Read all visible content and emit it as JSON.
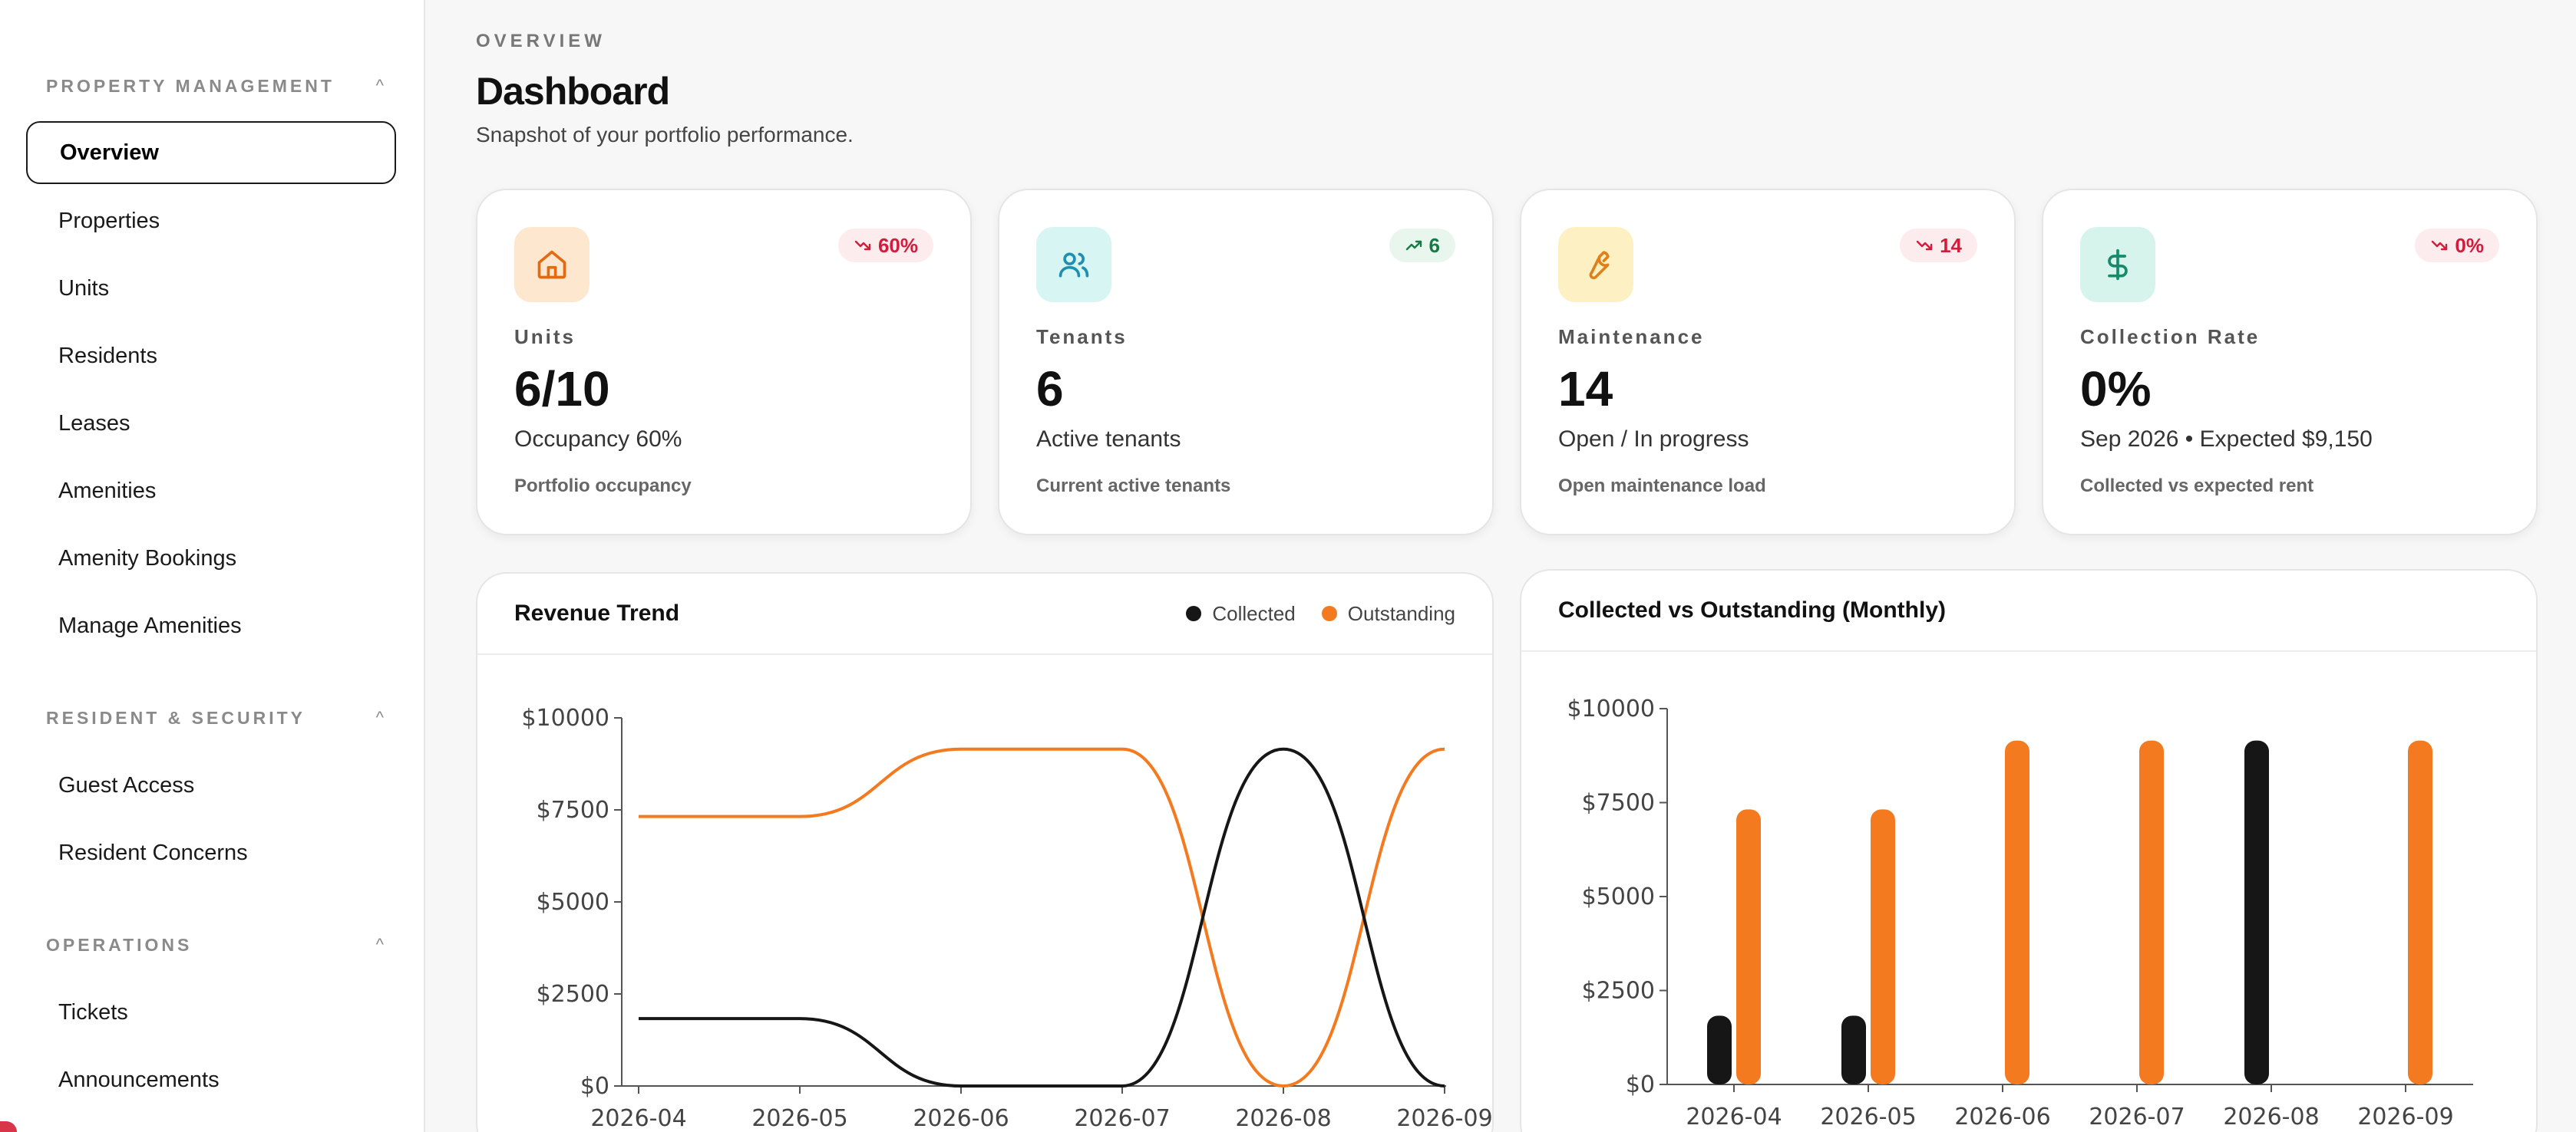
{
  "sidebar": {
    "sections": [
      {
        "label": "PROPERTY MANAGEMENT",
        "items": [
          "Overview",
          "Properties",
          "Units",
          "Residents",
          "Leases",
          "Amenities",
          "Amenity Bookings",
          "Manage Amenities"
        ]
      },
      {
        "label": "RESIDENT & SECURITY",
        "items": [
          "Guest Access",
          "Resident Concerns"
        ]
      },
      {
        "label": "OPERATIONS",
        "items": [
          "Tickets",
          "Announcements"
        ]
      }
    ],
    "active": "Overview",
    "caret": "^"
  },
  "header": {
    "eyebrow": "OVERVIEW",
    "title": "Dashboard",
    "subtitle": "Snapshot of your portfolio performance."
  },
  "cards": [
    {
      "icon": "home-icon",
      "icon_bg": "#fde7cf",
      "icon_color": "#e26a12",
      "trend": "60%",
      "trend_dir": "down",
      "label": "Units",
      "value": "6/10",
      "detail": "Occupancy 60%",
      "foot": "Portfolio occupancy"
    },
    {
      "icon": "users-icon",
      "icon_bg": "#d6f5f3",
      "icon_color": "#1f8fb0",
      "trend": "6",
      "trend_dir": "up",
      "label": "Tenants",
      "value": "6",
      "detail": "Active tenants",
      "foot": "Current active tenants"
    },
    {
      "icon": "wrench-icon",
      "icon_bg": "#fdf1c4",
      "icon_color": "#e0801a",
      "trend": "14",
      "trend_dir": "down",
      "label": "Maintenance",
      "value": "14",
      "detail": "Open / In progress",
      "foot": "Open maintenance load"
    },
    {
      "icon": "dollar-icon",
      "icon_bg": "#d6f3ec",
      "icon_color": "#178a6b",
      "trend": "0%",
      "trend_dir": "down",
      "label": "Collection Rate",
      "value": "0%",
      "detail": "Sep 2026 • Expected $9,150",
      "foot": "Collected vs expected rent"
    }
  ],
  "colors": {
    "collected": "#161616",
    "outstanding": "#f47a1f"
  },
  "chart_data": [
    {
      "type": "line",
      "title": "Revenue Trend",
      "categories": [
        "2026-04",
        "2026-05",
        "2026-06",
        "2026-07",
        "2026-08",
        "2026-09"
      ],
      "series": [
        {
          "name": "Collected",
          "values": [
            1830,
            1830,
            0,
            0,
            9150,
            0
          ]
        },
        {
          "name": "Outstanding",
          "values": [
            7320,
            7320,
            9150,
            9150,
            0,
            9150
          ]
        }
      ],
      "yticks": [
        "$0",
        "$2500",
        "$5000",
        "$7500",
        "$10000"
      ],
      "ylim": [
        0,
        10000
      ],
      "legend": "top-right",
      "grid": false
    },
    {
      "type": "bar",
      "title": "Collected vs Outstanding (Monthly)",
      "categories": [
        "2026-04",
        "2026-05",
        "2026-06",
        "2026-07",
        "2026-08",
        "2026-09"
      ],
      "series": [
        {
          "name": "Collected",
          "values": [
            1830,
            1830,
            0,
            0,
            9150,
            0
          ]
        },
        {
          "name": "Outstanding",
          "values": [
            7320,
            7320,
            9150,
            9150,
            0,
            9150
          ]
        }
      ],
      "yticks": [
        "$0",
        "$2500",
        "$5000",
        "$7500",
        "$10000"
      ],
      "ylim": [
        0,
        10000
      ],
      "grid": false
    }
  ]
}
